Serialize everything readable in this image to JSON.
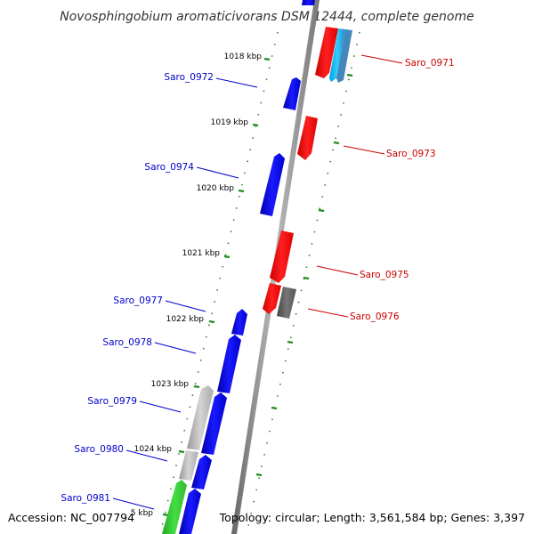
{
  "title": "Novosphingobium aromaticivorans DSM 12444, complete genome",
  "footer": {
    "accession": "Accession: NC_007794",
    "topology": "Topology: circular; Length: 3,561,584 bp; Genes: 3,397"
  },
  "colors": {
    "plus_strand": "#0000ff",
    "minus_strand": "#ff0000",
    "ruler_tick": "#228b22",
    "label_plus": "#0000cc",
    "label_minus": "#cc0000",
    "backbone": "#888888"
  },
  "ruler": {
    "labels": [
      "1018 kbp",
      "1019 kbp",
      "1020 kbp",
      "1021 kbp",
      "1022 kbp",
      "1023 kbp",
      "1024 kbp",
      "5 kbp"
    ]
  },
  "genes": {
    "plus": [
      "Saro_0972",
      "Saro_0974",
      "Saro_0977",
      "Saro_0978",
      "Saro_0979",
      "Saro_0980",
      "Saro_0981"
    ],
    "minus": [
      "Saro_0971",
      "Saro_0973",
      "Saro_0975",
      "Saro_0976"
    ]
  }
}
